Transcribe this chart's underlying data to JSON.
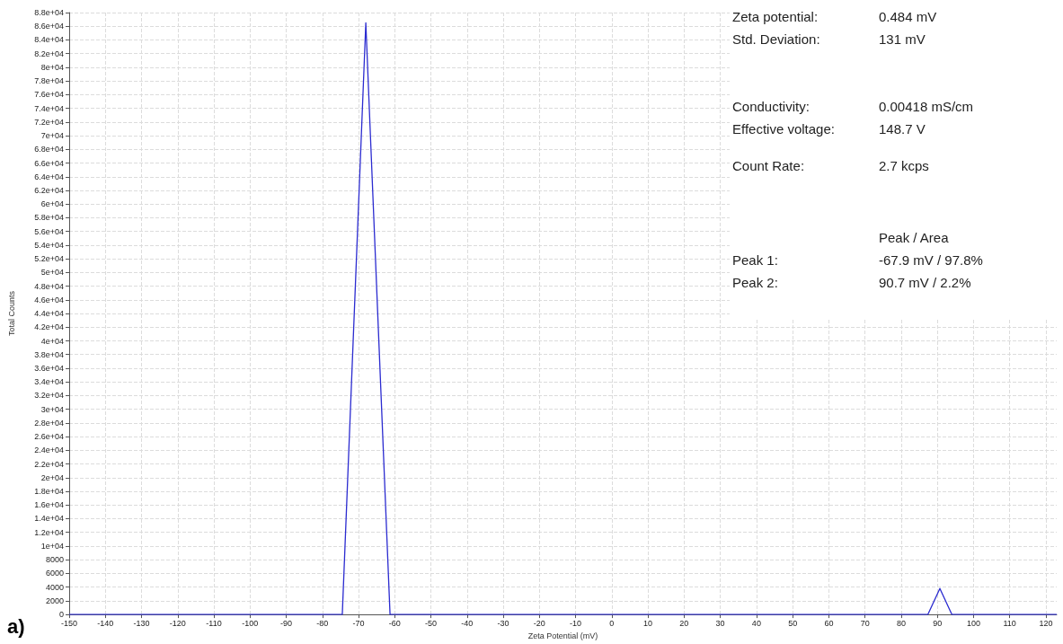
{
  "chart_data": {
    "type": "line",
    "xlabel": "Zeta Potential (mV)",
    "ylabel": "Total Counts",
    "x": [
      -150,
      -74.5,
      -68,
      -61.3,
      87.4,
      90.7,
      94,
      123
    ],
    "series": [
      {
        "color": "#2b2bd0",
        "values": [
          0,
          0,
          86500,
          0,
          0,
          3800,
          0,
          0
        ]
      }
    ],
    "xlim": [
      -150,
      123
    ],
    "xticks": [
      -150,
      -140,
      -130,
      -120,
      -110,
      -100,
      -90,
      -80,
      -70,
      -60,
      -50,
      -40,
      -30,
      -20,
      -10,
      0,
      10,
      20,
      30,
      40,
      50,
      60,
      70,
      80,
      90,
      100,
      110,
      120
    ],
    "ylim": [
      0,
      88000
    ],
    "yticks": [
      0,
      2000,
      4000,
      6000,
      8000,
      {
        "value": 10000,
        "label": "1e+04"
      },
      {
        "value": 12000,
        "label": "1.2e+04"
      },
      {
        "value": 14000,
        "label": "1.4e+04"
      },
      {
        "value": 16000,
        "label": "1.6e+04"
      },
      {
        "value": 18000,
        "label": "1.8e+04"
      },
      {
        "value": 20000,
        "label": "2e+04"
      },
      {
        "value": 22000,
        "label": "2.2e+04"
      },
      {
        "value": 24000,
        "label": "2.4e+04"
      },
      {
        "value": 26000,
        "label": "2.6e+04"
      },
      {
        "value": 28000,
        "label": "2.8e+04"
      },
      {
        "value": 30000,
        "label": "3e+04"
      },
      {
        "value": 32000,
        "label": "3.2e+04"
      },
      {
        "value": 34000,
        "label": "3.4e+04"
      },
      {
        "value": 36000,
        "label": "3.6e+04"
      },
      {
        "value": 38000,
        "label": "3.8e+04"
      },
      {
        "value": 40000,
        "label": "4e+04"
      },
      {
        "value": 42000,
        "label": "4.2e+04"
      },
      {
        "value": 44000,
        "label": "4.4e+04"
      },
      {
        "value": 46000,
        "label": "4.6e+04"
      },
      {
        "value": 48000,
        "label": "4.8e+04"
      },
      {
        "value": 50000,
        "label": "5e+04"
      },
      {
        "value": 52000,
        "label": "5.2e+04"
      },
      {
        "value": 54000,
        "label": "5.4e+04"
      },
      {
        "value": 56000,
        "label": "5.6e+04"
      },
      {
        "value": 58000,
        "label": "5.8e+04"
      },
      {
        "value": 60000,
        "label": "6e+04"
      },
      {
        "value": 62000,
        "label": "6.2e+04"
      },
      {
        "value": 64000,
        "label": "6.4e+04"
      },
      {
        "value": 66000,
        "label": "6.6e+04"
      },
      {
        "value": 68000,
        "label": "6.8e+04"
      },
      {
        "value": 70000,
        "label": "7e+04"
      },
      {
        "value": 72000,
        "label": "7.2e+04"
      },
      {
        "value": 74000,
        "label": "7.4e+04"
      },
      {
        "value": 76000,
        "label": "7.6e+04"
      },
      {
        "value": 78000,
        "label": "7.8e+04"
      },
      {
        "value": 80000,
        "label": "8e+04"
      },
      {
        "value": 82000,
        "label": "8.2e+04"
      },
      {
        "value": 84000,
        "label": "8.4e+04"
      },
      {
        "value": 86000,
        "label": "8.6e+04"
      },
      {
        "value": 88000,
        "label": "8.8e+04"
      }
    ],
    "grid": true,
    "marker": "none",
    "annotations": [
      "Zeta potential:",
      "0.484 mV",
      "Std. Deviation:",
      "131 mV",
      "Conductivity:",
      "0.00418 mS/cm",
      "Effective voltage:",
      "148.7 V",
      "Count Rate:",
      "2.7 kcps",
      "Peak / Area",
      "Peak 1:",
      "-67.9 mV / 97.8%",
      "Peak 2:",
      "90.7 mV / 2.2%",
      "a)"
    ]
  }
}
